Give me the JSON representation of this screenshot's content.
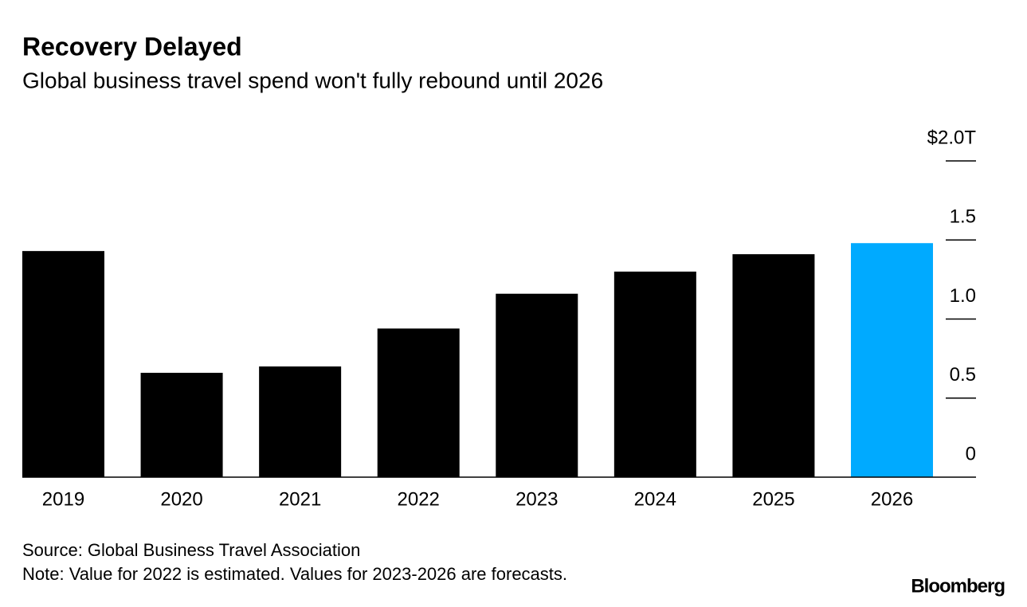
{
  "chart_data": {
    "type": "bar",
    "title": "Recovery Delayed",
    "subtitle": "Global business travel spend won't fully rebound until 2026",
    "categories": [
      "2019",
      "2020",
      "2021",
      "2022",
      "2023",
      "2024",
      "2025",
      "2026"
    ],
    "values": [
      1.43,
      0.66,
      0.7,
      0.94,
      1.16,
      1.3,
      1.41,
      1.48
    ],
    "colors": [
      "#000000",
      "#000000",
      "#000000",
      "#000000",
      "#000000",
      "#000000",
      "#000000",
      "#00aaff"
    ],
    "ylim": [
      0,
      2
    ],
    "yticks": [
      0,
      0.5,
      {
        "value": 1,
        "label": "1.0"
      },
      1.5,
      {
        "value": 2,
        "label": "$2.0T"
      }
    ],
    "source": "Source: Global Business Travel Association",
    "note": "Note: Value for 2022 is estimated. Values for 2023-2026 are forecasts.",
    "branding": "Bloomberg"
  }
}
